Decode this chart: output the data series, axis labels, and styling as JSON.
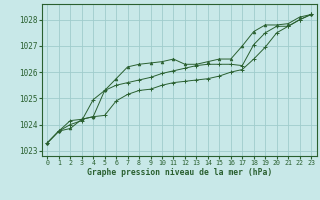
{
  "xlabel": "Graphe pression niveau de la mer (hPa)",
  "xlim": [
    -0.5,
    23.5
  ],
  "ylim": [
    1022.8,
    1028.6
  ],
  "yticks": [
    1023,
    1024,
    1025,
    1026,
    1027,
    1028
  ],
  "xticks": [
    0,
    1,
    2,
    3,
    4,
    5,
    6,
    7,
    8,
    9,
    10,
    11,
    12,
    13,
    14,
    15,
    16,
    17,
    18,
    19,
    20,
    21,
    22,
    23
  ],
  "background_color": "#c8e8e8",
  "grid_color": "#a0cccc",
  "line_color": "#2a6030",
  "series1": [
    [
      0,
      1023.3
    ],
    [
      1,
      1023.75
    ],
    [
      2,
      1023.85
    ],
    [
      3,
      1024.2
    ],
    [
      4,
      1024.3
    ],
    [
      5,
      1025.3
    ],
    [
      6,
      1025.75
    ],
    [
      7,
      1026.2
    ],
    [
      8,
      1026.3
    ],
    [
      9,
      1026.35
    ],
    [
      10,
      1026.4
    ],
    [
      11,
      1026.5
    ],
    [
      12,
      1026.3
    ],
    [
      13,
      1026.3
    ],
    [
      14,
      1026.4
    ],
    [
      15,
      1026.5
    ],
    [
      16,
      1026.5
    ],
    [
      17,
      1027.0
    ],
    [
      18,
      1027.55
    ],
    [
      19,
      1027.8
    ],
    [
      20,
      1027.8
    ],
    [
      21,
      1027.85
    ],
    [
      22,
      1028.1
    ],
    [
      23,
      1028.2
    ]
  ],
  "series2": [
    [
      0,
      1023.3
    ],
    [
      1,
      1023.75
    ],
    [
      2,
      1024.15
    ],
    [
      3,
      1024.2
    ],
    [
      4,
      1024.3
    ],
    [
      5,
      1024.35
    ],
    [
      6,
      1024.9
    ],
    [
      7,
      1025.15
    ],
    [
      8,
      1025.3
    ],
    [
      9,
      1025.35
    ],
    [
      10,
      1025.5
    ],
    [
      11,
      1025.6
    ],
    [
      12,
      1025.65
    ],
    [
      13,
      1025.7
    ],
    [
      14,
      1025.75
    ],
    [
      15,
      1025.85
    ],
    [
      16,
      1026.0
    ],
    [
      17,
      1026.1
    ],
    [
      18,
      1026.5
    ],
    [
      19,
      1026.95
    ],
    [
      20,
      1027.5
    ],
    [
      21,
      1027.75
    ],
    [
      22,
      1028.0
    ],
    [
      23,
      1028.2
    ]
  ],
  "series3": [
    [
      0,
      1023.3
    ],
    [
      1,
      1023.75
    ],
    [
      2,
      1024.0
    ],
    [
      3,
      1024.15
    ],
    [
      4,
      1024.95
    ],
    [
      5,
      1025.3
    ],
    [
      6,
      1025.5
    ],
    [
      7,
      1025.6
    ],
    [
      8,
      1025.7
    ],
    [
      9,
      1025.8
    ],
    [
      10,
      1025.95
    ],
    [
      11,
      1026.05
    ],
    [
      12,
      1026.15
    ],
    [
      13,
      1026.25
    ],
    [
      14,
      1026.3
    ],
    [
      15,
      1026.3
    ],
    [
      16,
      1026.3
    ],
    [
      17,
      1026.25
    ],
    [
      18,
      1027.05
    ],
    [
      19,
      1027.5
    ],
    [
      20,
      1027.75
    ],
    [
      21,
      1027.75
    ],
    [
      22,
      1028.0
    ],
    [
      23,
      1028.2
    ]
  ]
}
